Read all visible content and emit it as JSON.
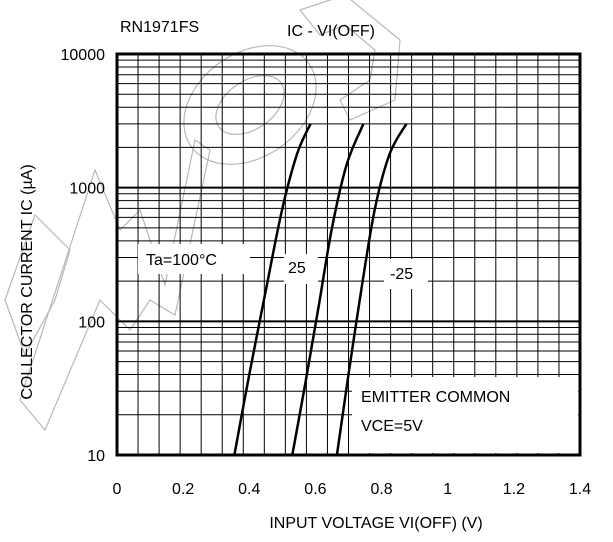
{
  "chart_data": {
    "type": "line",
    "part_number": "RN1971FS",
    "title": "IC - VI(OFF)",
    "xlabel": "INPUT VOLTAGE VI(OFF) (V)",
    "ylabel": "COLLECTOR CURRENT IC (µA)",
    "xlim": [
      0,
      1.4
    ],
    "ylim": [
      10,
      10000
    ],
    "y_scale": "log",
    "grid": true,
    "x_ticks": [
      {
        "value": 0,
        "label": "0"
      },
      {
        "value": 0.2,
        "label": "0.2"
      },
      {
        "value": 0.4,
        "label": "0.4"
      },
      {
        "value": 0.6,
        "label": "0.6"
      },
      {
        "value": 0.8,
        "label": "0.8"
      },
      {
        "value": 1.0,
        "label": "1"
      },
      {
        "value": 1.2,
        "label": "1.2"
      },
      {
        "value": 1.4,
        "label": "1.4"
      }
    ],
    "y_ticks": [
      {
        "value": 10,
        "label": "10"
      },
      {
        "value": 100,
        "label": "100"
      },
      {
        "value": 1000,
        "label": "1000"
      },
      {
        "value": 10000,
        "label": "10000"
      }
    ],
    "series": [
      {
        "name": "Ta=100°C",
        "x": [
          0.355,
          0.4,
          0.45,
          0.5,
          0.545,
          0.585
        ],
        "y": [
          10,
          40,
          170,
          700,
          1800,
          3000
        ]
      },
      {
        "name": "25",
        "x": [
          0.53,
          0.57,
          0.61,
          0.65,
          0.695,
          0.745
        ],
        "y": [
          10,
          35,
          130,
          500,
          1500,
          3000
        ]
      },
      {
        "name": "-25",
        "x": [
          0.665,
          0.7,
          0.74,
          0.78,
          0.825,
          0.875
        ],
        "y": [
          10,
          40,
          180,
          700,
          1800,
          3000
        ]
      }
    ],
    "annotations": [
      "EMITTER COMMON",
      "VCE=5V"
    ]
  }
}
